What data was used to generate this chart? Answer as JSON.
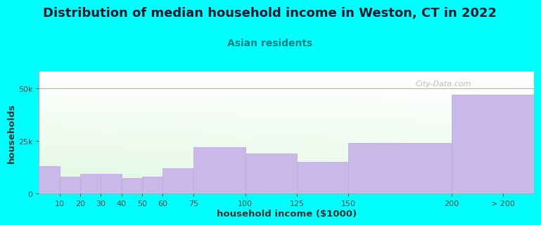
{
  "title": "Distribution of median household income in Weston, CT in 2022",
  "subtitle": "Asian residents",
  "xlabel": "household income ($1000)",
  "ylabel": "households",
  "categories": [
    "10",
    "20",
    "30",
    "40",
    "50",
    "60",
    "75",
    "100",
    "125",
    "150",
    "200",
    "> 200"
  ],
  "values": [
    13000,
    8000,
    9500,
    9500,
    7500,
    8000,
    12000,
    22000,
    19000,
    15000,
    24000,
    47000
  ],
  "bar_color": "#c9b8e8",
  "bar_edge_color": "#b8a8d8",
  "background_color": "#00ffff",
  "yticks": [
    0,
    25000,
    50000
  ],
  "ytick_labels": [
    "0",
    "25k",
    "50k"
  ],
  "ylim": [
    0,
    58000
  ],
  "title_fontsize": 13,
  "subtitle_fontsize": 10,
  "axis_label_fontsize": 9.5,
  "tick_fontsize": 8,
  "watermark": "City-Data.com",
  "watermark_color": "#a8b8a8",
  "x_edges": [
    0,
    10,
    20,
    30,
    40,
    50,
    60,
    75,
    100,
    125,
    150,
    200,
    240
  ],
  "x_tick_positions": [
    10,
    20,
    30,
    40,
    50,
    60,
    75,
    100,
    125,
    150,
    200
  ],
  "x_tick_labels": [
    "10",
    "20",
    "30",
    "40",
    "50",
    "60",
    "75",
    "100",
    "125",
    "150",
    "200"
  ],
  "xlim": [
    0,
    240
  ]
}
